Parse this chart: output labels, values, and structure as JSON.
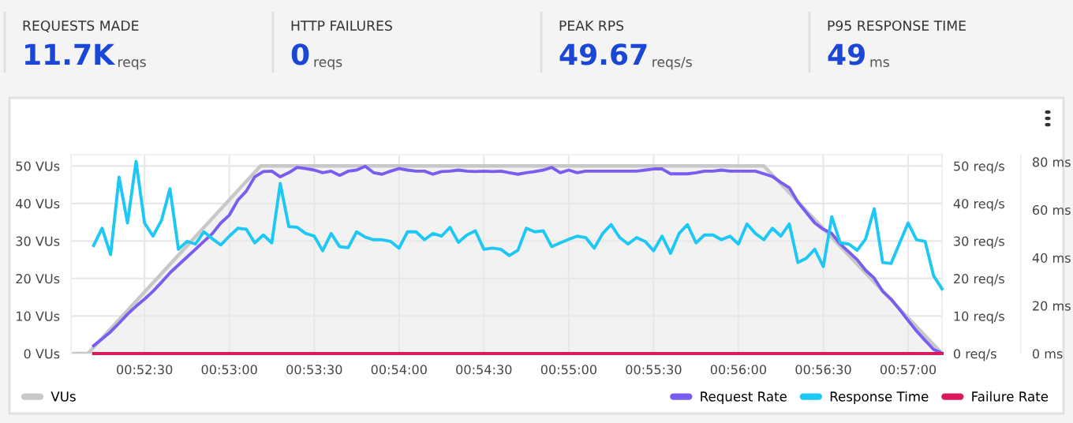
{
  "chart_data": [
    {
      "type": "other",
      "categories": [
        "REQUESTS MADE",
        "HTTP FAILURES",
        "PEAK RPS",
        "P95 RESPONSE TIME"
      ],
      "value_labels": [
        "11.7K",
        "0",
        "49.67",
        "49"
      ],
      "annotations": [
        "reqs",
        "reqs",
        "reqs/s",
        "ms"
      ]
    },
    {
      "type": "line",
      "x": [
        0.87,
        0.87083,
        0.87167,
        0.8725,
        0.87333,
        0.87417,
        0.875,
        0.87583,
        0.87667,
        0.8775,
        0.87833,
        0.87917,
        0.88,
        0.88083,
        0.88167,
        0.8825,
        0.88333,
        0.88417,
        0.885,
        0.88583,
        0.88667,
        0.8875,
        0.88833,
        0.88917,
        0.89,
        0.89083,
        0.89167,
        0.8925,
        0.89333,
        0.89417,
        0.895,
        0.89583,
        0.89667,
        0.8975,
        0.89833,
        0.89917,
        0.9,
        0.90083,
        0.90167,
        0.9025,
        0.90333,
        0.90417,
        0.905,
        0.90583,
        0.90667,
        0.9075,
        0.90833,
        0.90917,
        0.91,
        0.91083,
        0.91167,
        0.9125,
        0.91333,
        0.91417,
        0.915,
        0.91583,
        0.91667,
        0.9175,
        0.91833,
        0.91917,
        0.92,
        0.92083,
        0.92167,
        0.9225,
        0.92333,
        0.92417,
        0.925,
        0.92583,
        0.92667,
        0.9275,
        0.92833,
        0.92917,
        0.93,
        0.93083,
        0.93167,
        0.9325,
        0.93333,
        0.93417,
        0.935,
        0.93583,
        0.93667,
        0.9375,
        0.93833,
        0.93917,
        0.94,
        0.94083,
        0.94167,
        0.9425,
        0.94333,
        0.94417,
        0.945,
        0.94583,
        0.94667,
        0.9475,
        0.94833,
        0.94917,
        0.95,
        0.95083,
        0.95167,
        0.9525,
        0.95333
      ],
      "series": [
        {
          "name": "VUs",
          "type": "area",
          "color": "#c8c8c8",
          "x": [
            0.86806,
            0.86944,
            0.88639,
            0.93583,
            0.95333
          ],
          "values": [
            0,
            0,
            50,
            50,
            0
          ]
        },
        {
          "name": "Request Rate",
          "color": "#7b5cf0",
          "axis": "y2",
          "values": [
            2.1,
            3.9,
            5.8,
            8.1,
            10.5,
            12.6,
            14.5,
            16.6,
            19.0,
            21.5,
            23.6,
            25.7,
            27.8,
            29.9,
            32.0,
            34.8,
            36.9,
            40.9,
            43.3,
            47.1,
            48.5,
            48.6,
            47.1,
            48.2,
            49.6,
            49.3,
            48.9,
            48.2,
            48.6,
            47.5,
            48.6,
            48.9,
            49.9,
            48.2,
            47.8,
            48.6,
            49.3,
            48.9,
            48.6,
            48.6,
            47.8,
            48.5,
            48.6,
            48.9,
            48.6,
            48.5,
            48.6,
            48.5,
            48.6,
            48.2,
            47.8,
            48.2,
            48.5,
            48.9,
            49.6,
            48.2,
            48.9,
            48.2,
            48.6,
            48.6,
            48.6,
            48.6,
            48.6,
            48.6,
            48.6,
            48.9,
            49.2,
            49.2,
            47.9,
            47.9,
            47.9,
            48.2,
            48.6,
            48.6,
            48.9,
            48.6,
            48.6,
            48.6,
            48.6,
            47.9,
            47.2,
            45.6,
            44.2,
            40.4,
            37.6,
            34.8,
            33.1,
            32.0,
            29.2,
            27.1,
            25.0,
            22.2,
            20.1,
            16.6,
            14.5,
            11.7,
            8.8,
            6.0,
            3.5,
            1.1,
            0.1
          ]
        },
        {
          "name": "Response Time",
          "color": "#1ec8f5",
          "axis": "y3",
          "values": [
            45.1,
            52.3,
            41.3,
            73.6,
            54.5,
            80.2,
            54.5,
            49.0,
            55.6,
            68.8,
            43.5,
            46.8,
            45.7,
            50.8,
            47.9,
            45.3,
            49.0,
            52.3,
            51.9,
            46.2,
            49.5,
            46.2,
            71.0,
            53.0,
            52.7,
            50.1,
            49.0,
            42.9,
            50.1,
            44.6,
            44.2,
            50.8,
            48.6,
            47.5,
            47.5,
            46.8,
            44.0,
            50.8,
            50.8,
            47.5,
            50.1,
            49.0,
            52.7,
            46.4,
            49.5,
            51.2,
            43.5,
            44.0,
            43.5,
            40.9,
            43.1,
            52.3,
            50.8,
            51.2,
            44.6,
            46.2,
            47.7,
            49.0,
            48.4,
            44.0,
            50.1,
            53.8,
            48.4,
            45.7,
            48.4,
            46.8,
            42.9,
            49.0,
            41.8,
            50.1,
            53.8,
            46.2,
            49.5,
            49.5,
            47.5,
            49.0,
            45.7,
            54.1,
            50.1,
            47.5,
            52.3,
            49.0,
            54.1,
            38.0,
            39.8,
            43.5,
            36.3,
            57.1,
            46.2,
            45.7,
            43.1,
            47.9,
            60.4,
            38.0,
            37.6,
            46.2,
            54.5,
            47.5,
            46.8,
            32.5,
            27.0
          ]
        },
        {
          "name": "Failure Rate",
          "color": "#d8195c",
          "axis": "y2",
          "values": [
            0,
            0,
            0,
            0,
            0,
            0,
            0,
            0,
            0,
            0,
            0,
            0,
            0,
            0,
            0,
            0,
            0,
            0,
            0,
            0,
            0,
            0,
            0,
            0,
            0,
            0,
            0,
            0,
            0,
            0,
            0,
            0,
            0,
            0,
            0,
            0,
            0,
            0,
            0,
            0,
            0,
            0,
            0,
            0,
            0,
            0,
            0,
            0,
            0,
            0,
            0,
            0,
            0,
            0,
            0,
            0,
            0,
            0,
            0,
            0,
            0,
            0,
            0,
            0,
            0,
            0,
            0,
            0,
            0,
            0,
            0,
            0,
            0,
            0,
            0,
            0,
            0,
            0,
            0,
            0,
            0,
            0,
            0,
            0,
            0,
            0,
            0,
            0,
            0,
            0,
            0,
            0,
            0,
            0,
            0,
            0,
            0,
            0,
            0,
            0,
            0
          ]
        }
      ],
      "xlim": [
        0.86778,
        0.95333
      ],
      "xticks": [
        {
          "value": 0.875,
          "label": "00:52:30"
        },
        {
          "value": 0.88333,
          "label": "00:53:00"
        },
        {
          "value": 0.89167,
          "label": "00:53:30"
        },
        {
          "value": 0.9,
          "label": "00:54:00"
        },
        {
          "value": 0.90833,
          "label": "00:54:30"
        },
        {
          "value": 0.91667,
          "label": "00:55:00"
        },
        {
          "value": 0.925,
          "label": "00:55:30"
        },
        {
          "value": 0.93333,
          "label": "00:56:00"
        },
        {
          "value": 0.94167,
          "label": "00:56:30"
        },
        {
          "value": 0.95,
          "label": "00:57:00"
        }
      ],
      "ylim": [
        0,
        53
      ],
      "yticks": [
        {
          "value": 0,
          "label": "0 VUs"
        },
        {
          "value": 10,
          "label": "10 VUs"
        },
        {
          "value": 20,
          "label": "20 VUs"
        },
        {
          "value": 30,
          "label": "30 VUs"
        },
        {
          "value": 40,
          "label": "40 VUs"
        },
        {
          "value": 50,
          "label": "50 VUs"
        }
      ],
      "y2lim": [
        0,
        53
      ],
      "y2ticks": [
        {
          "value": 0,
          "label": "0 req/s"
        },
        {
          "value": 10,
          "label": "10 req/s"
        },
        {
          "value": 20,
          "label": "20 req/s"
        },
        {
          "value": 30,
          "label": "30 req/s"
        },
        {
          "value": 40,
          "label": "40 req/s"
        },
        {
          "value": 50,
          "label": "50 req/s"
        }
      ],
      "y3lim": [
        0,
        83
      ],
      "y3ticks": [
        {
          "value": 0,
          "label": "0 ms"
        },
        {
          "value": 20,
          "label": "20 ms"
        },
        {
          "value": 40,
          "label": "40 ms"
        },
        {
          "value": 60,
          "label": "60 ms"
        },
        {
          "value": 80,
          "label": "80 ms"
        }
      ],
      "grid": true,
      "legend": "bottom",
      "marker": "none",
      "line_style": "solid"
    }
  ]
}
